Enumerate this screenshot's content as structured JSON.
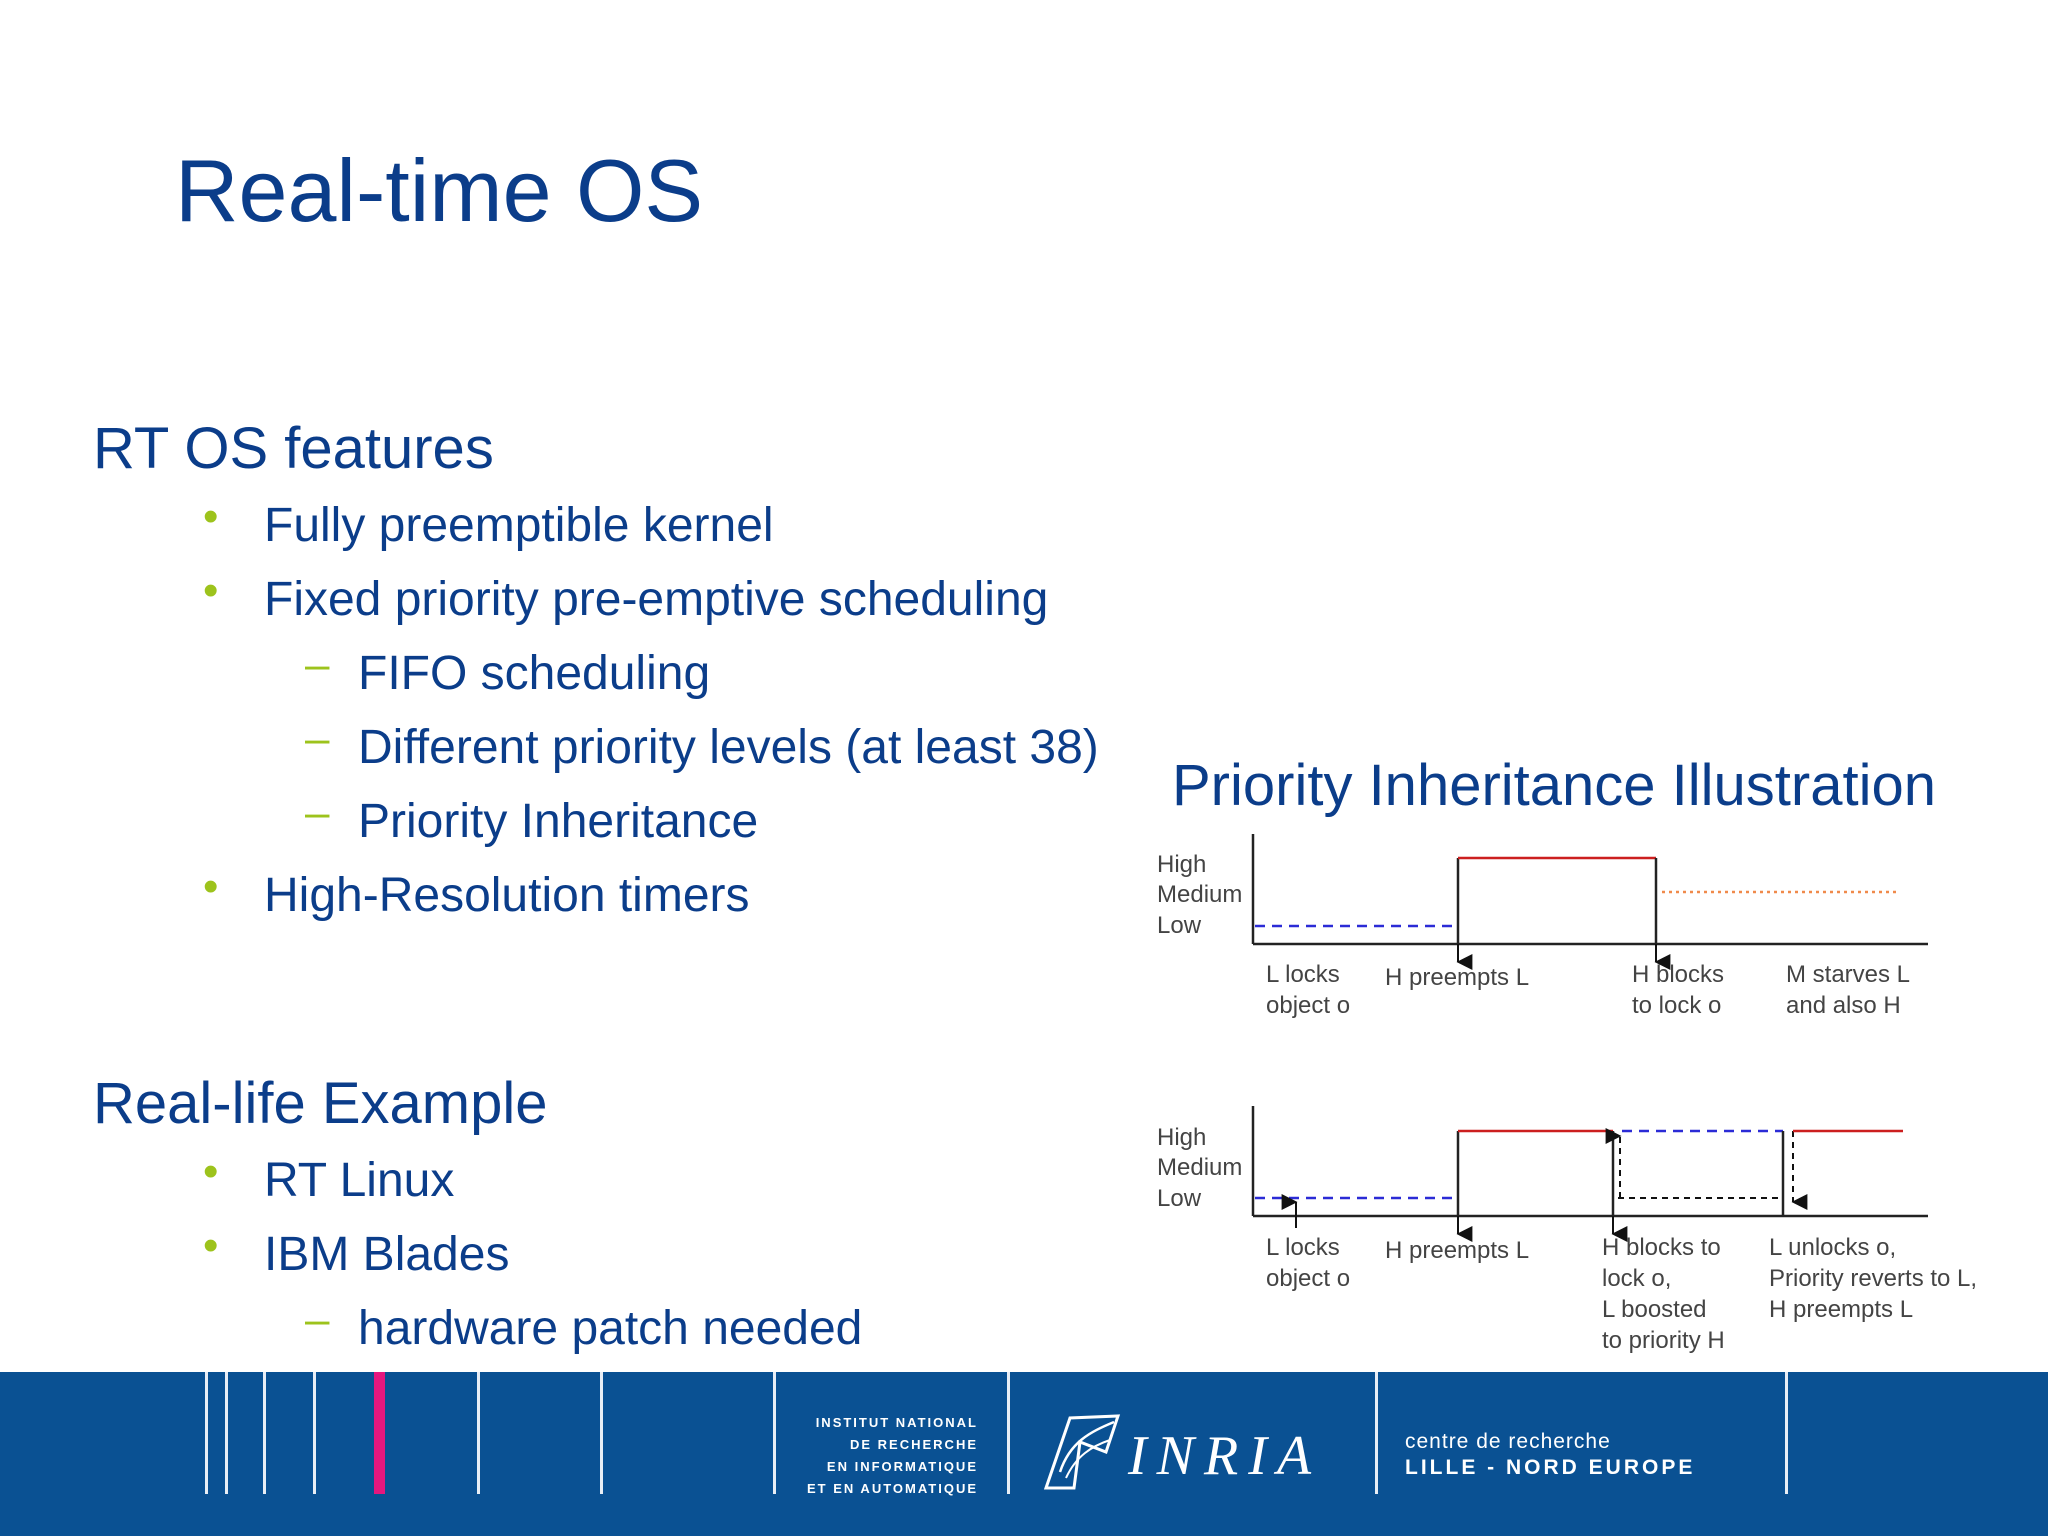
{
  "title": "Real-time OS",
  "sections": [
    {
      "heading": "RT OS features",
      "items": [
        {
          "level": 1,
          "text": "Fully preemptible kernel"
        },
        {
          "level": 1,
          "text": "Fixed priority pre-emptive scheduling"
        },
        {
          "level": 2,
          "text": "FIFO scheduling"
        },
        {
          "level": 2,
          "text": "Different priority levels (at least 38)"
        },
        {
          "level": 2,
          "text": "Priority Inheritance"
        },
        {
          "level": 1,
          "text": "High-Resolution timers"
        }
      ]
    },
    {
      "heading": "Real-life Example",
      "items": [
        {
          "level": 1,
          "text": "RT Linux"
        },
        {
          "level": 1,
          "text": "IBM Blades"
        },
        {
          "level": 2,
          "text": "hardware patch needed"
        }
      ]
    }
  ],
  "bullet_marks": {
    "level1": "•",
    "level2": "–"
  },
  "diagram": {
    "title": "Priority Inheritance Illustration",
    "levels": [
      "High",
      "Medium",
      "Low"
    ],
    "top_events": [
      [
        "L locks",
        "object o"
      ],
      [
        "H preempts L"
      ],
      [
        "H blocks",
        "to lock o"
      ],
      [
        "M starves L",
        "and also H"
      ]
    ],
    "bottom_events": [
      [
        "L locks",
        "object o"
      ],
      [
        "H preempts L"
      ],
      [
        "H blocks to",
        "lock o,",
        "L boosted",
        "to priority H"
      ],
      [
        "L unlocks o,",
        "Priority reverts to L,",
        "H preempts L"
      ]
    ]
  },
  "footer": {
    "institute": [
      "INSTITUT NATIONAL",
      "DE RECHERCHE",
      "EN INFORMATIQUE",
      "ET EN AUTOMATIQUE"
    ],
    "logo": "INRIA",
    "centre_line1": "centre de recherche",
    "centre_line2": "LILLE - NORD EUROPE"
  },
  "colors": {
    "text": "#0b3d8a",
    "bullet": "#9dc31c",
    "footer": "#0a5193",
    "accent_pink": "#e5177e",
    "high_line": "#cc1f1f",
    "low_line": "#2b2bd6",
    "medium_line": "#f08a4b"
  }
}
